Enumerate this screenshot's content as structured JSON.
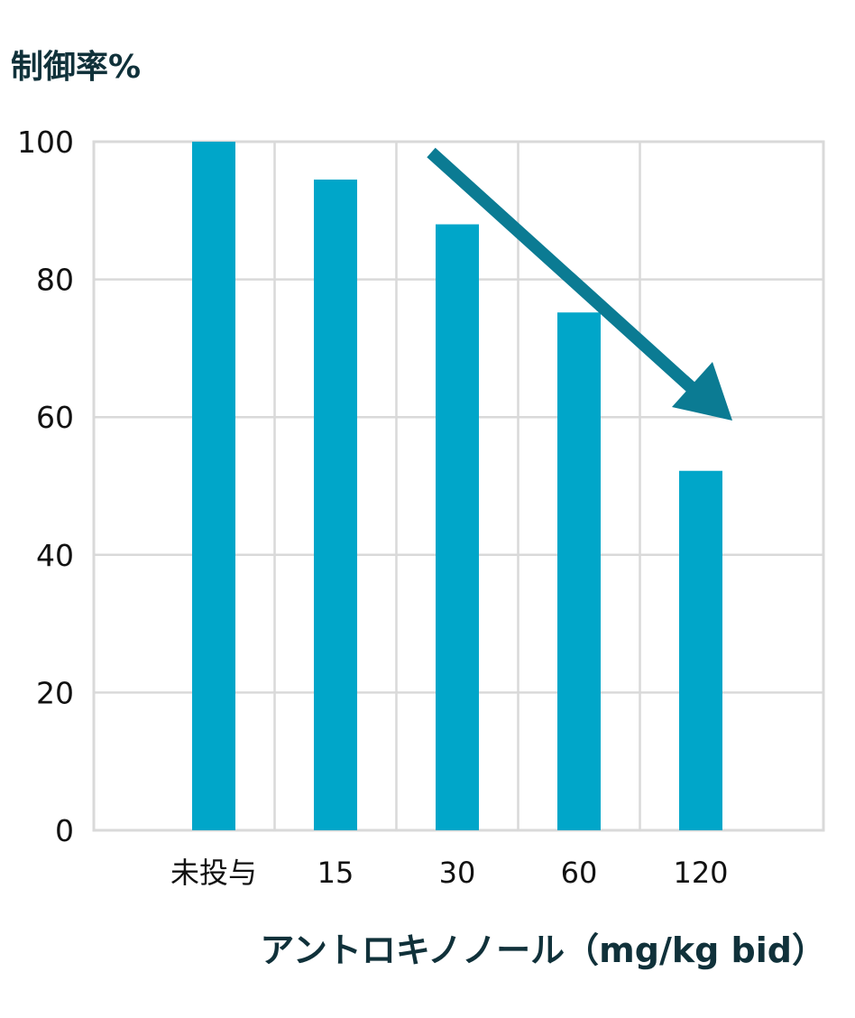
{
  "chart_data": {
    "type": "bar",
    "ylabel": "制御率%",
    "xlabel": "アントロキノノール（mg/kg bid）",
    "categories": [
      "未投与",
      "15",
      "30",
      "60",
      "120"
    ],
    "values": [
      100,
      94.5,
      88,
      75.2,
      52.2
    ],
    "ylim": [
      0,
      100
    ],
    "yticks": [
      0,
      20,
      40,
      60,
      80,
      100
    ],
    "grid": true,
    "legend": "none",
    "annotation": "downward-trend-arrow",
    "colors": {
      "bar": "#00a6c9",
      "arrow": "#0b7b93",
      "grid": "#d9d9d9",
      "text": "#10313a"
    }
  }
}
